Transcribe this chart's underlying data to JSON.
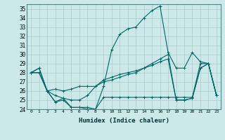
{
  "xlabel": "Humidex (Indice chaleur)",
  "ylabel": "",
  "x": [
    0,
    1,
    2,
    3,
    4,
    5,
    6,
    7,
    8,
    9,
    10,
    11,
    12,
    13,
    14,
    15,
    16,
    17,
    18,
    19,
    20,
    21,
    22,
    23
  ],
  "series": [
    [
      28.0,
      28.5,
      26.0,
      26.2,
      26.0,
      26.2,
      26.5,
      26.5,
      26.5,
      27.0,
      27.2,
      27.5,
      27.8,
      28.0,
      28.5,
      29.0,
      29.5,
      30.0,
      25.0,
      25.0,
      25.2,
      28.5,
      29.0,
      25.5
    ],
    [
      28.0,
      28.5,
      26.0,
      24.8,
      25.2,
      24.2,
      24.2,
      24.0,
      24.0,
      26.5,
      30.5,
      32.2,
      32.8,
      33.0,
      34.0,
      34.8,
      35.3,
      30.2,
      28.5,
      28.5,
      30.2,
      29.2,
      29.0,
      25.5
    ],
    [
      28.0,
      28.0,
      26.0,
      25.5,
      25.2,
      25.0,
      25.0,
      25.5,
      26.5,
      27.2,
      27.5,
      27.8,
      28.0,
      28.2,
      28.5,
      28.8,
      29.2,
      29.5,
      25.0,
      25.0,
      25.2,
      28.5,
      29.0,
      25.5
    ],
    [
      28.0,
      28.0,
      26.0,
      24.8,
      25.0,
      24.2,
      24.2,
      24.2,
      24.0,
      25.3,
      25.3,
      25.3,
      25.3,
      25.3,
      25.3,
      25.3,
      25.3,
      25.3,
      25.3,
      25.3,
      25.3,
      29.0,
      29.0,
      25.5
    ]
  ],
  "bg_color": "#cce8e8",
  "grid_color": "#aacccc",
  "line_color": "#006666",
  "ylim": [
    24,
    35.5
  ],
  "yticks": [
    24,
    25,
    26,
    27,
    28,
    29,
    30,
    31,
    32,
    33,
    34,
    35
  ],
  "marker": "+",
  "markersize": 3,
  "linewidth": 0.8
}
